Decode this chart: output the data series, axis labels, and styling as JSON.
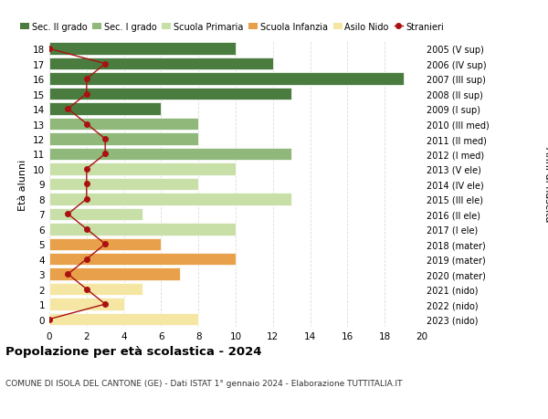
{
  "ages": [
    0,
    1,
    2,
    3,
    4,
    5,
    6,
    7,
    8,
    9,
    10,
    11,
    12,
    13,
    14,
    15,
    16,
    17,
    18
  ],
  "bar_values": [
    8,
    4,
    5,
    7,
    10,
    6,
    10,
    5,
    13,
    8,
    10,
    13,
    8,
    8,
    6,
    13,
    19,
    12,
    10
  ],
  "stranieri": [
    0,
    3,
    2,
    1,
    2,
    3,
    2,
    1,
    2,
    2,
    2,
    3,
    3,
    2,
    1,
    2,
    2,
    3,
    0
  ],
  "right_labels": [
    "2023 (nido)",
    "2022 (nido)",
    "2021 (nido)",
    "2020 (mater)",
    "2019 (mater)",
    "2018 (mater)",
    "2017 (I ele)",
    "2016 (II ele)",
    "2015 (III ele)",
    "2014 (IV ele)",
    "2013 (V ele)",
    "2012 (I med)",
    "2011 (II med)",
    "2010 (III med)",
    "2009 (I sup)",
    "2008 (II sup)",
    "2007 (III sup)",
    "2006 (IV sup)",
    "2005 (V sup)"
  ],
  "bar_colors": [
    "#f5e6a3",
    "#f5e6a3",
    "#f5e6a3",
    "#e8a04a",
    "#e8a04a",
    "#e8a04a",
    "#c8dfa8",
    "#c8dfa8",
    "#c8dfa8",
    "#c8dfa8",
    "#c8dfa8",
    "#8fb87a",
    "#8fb87a",
    "#8fb87a",
    "#4a7c3f",
    "#4a7c3f",
    "#4a7c3f",
    "#4a7c3f",
    "#4a7c3f"
  ],
  "legend_labels": [
    "Sec. II grado",
    "Sec. I grado",
    "Scuola Primaria",
    "Scuola Infanzia",
    "Asilo Nido",
    "Stranieri"
  ],
  "legend_colors": [
    "#4a7c3f",
    "#8fb87a",
    "#c8dfa8",
    "#e8a04a",
    "#f5e6a3",
    "#cc2222"
  ],
  "ylabel": "Età alunni",
  "ylabel_right": "Anni di nascita",
  "title": "Popolazione per età scolastica - 2024",
  "subtitle": "COMUNE DI ISOLA DEL CANTONE (GE) - Dati ISTAT 1° gennaio 2024 - Elaborazione TUTTITALIA.IT",
  "xlim": [
    0,
    20
  ],
  "xticks": [
    0,
    2,
    4,
    6,
    8,
    10,
    12,
    14,
    16,
    18,
    20
  ],
  "bar_height": 0.82,
  "stranieri_color": "#aa1111",
  "bg_color": "#ffffff",
  "grid_color": "#dddddd"
}
